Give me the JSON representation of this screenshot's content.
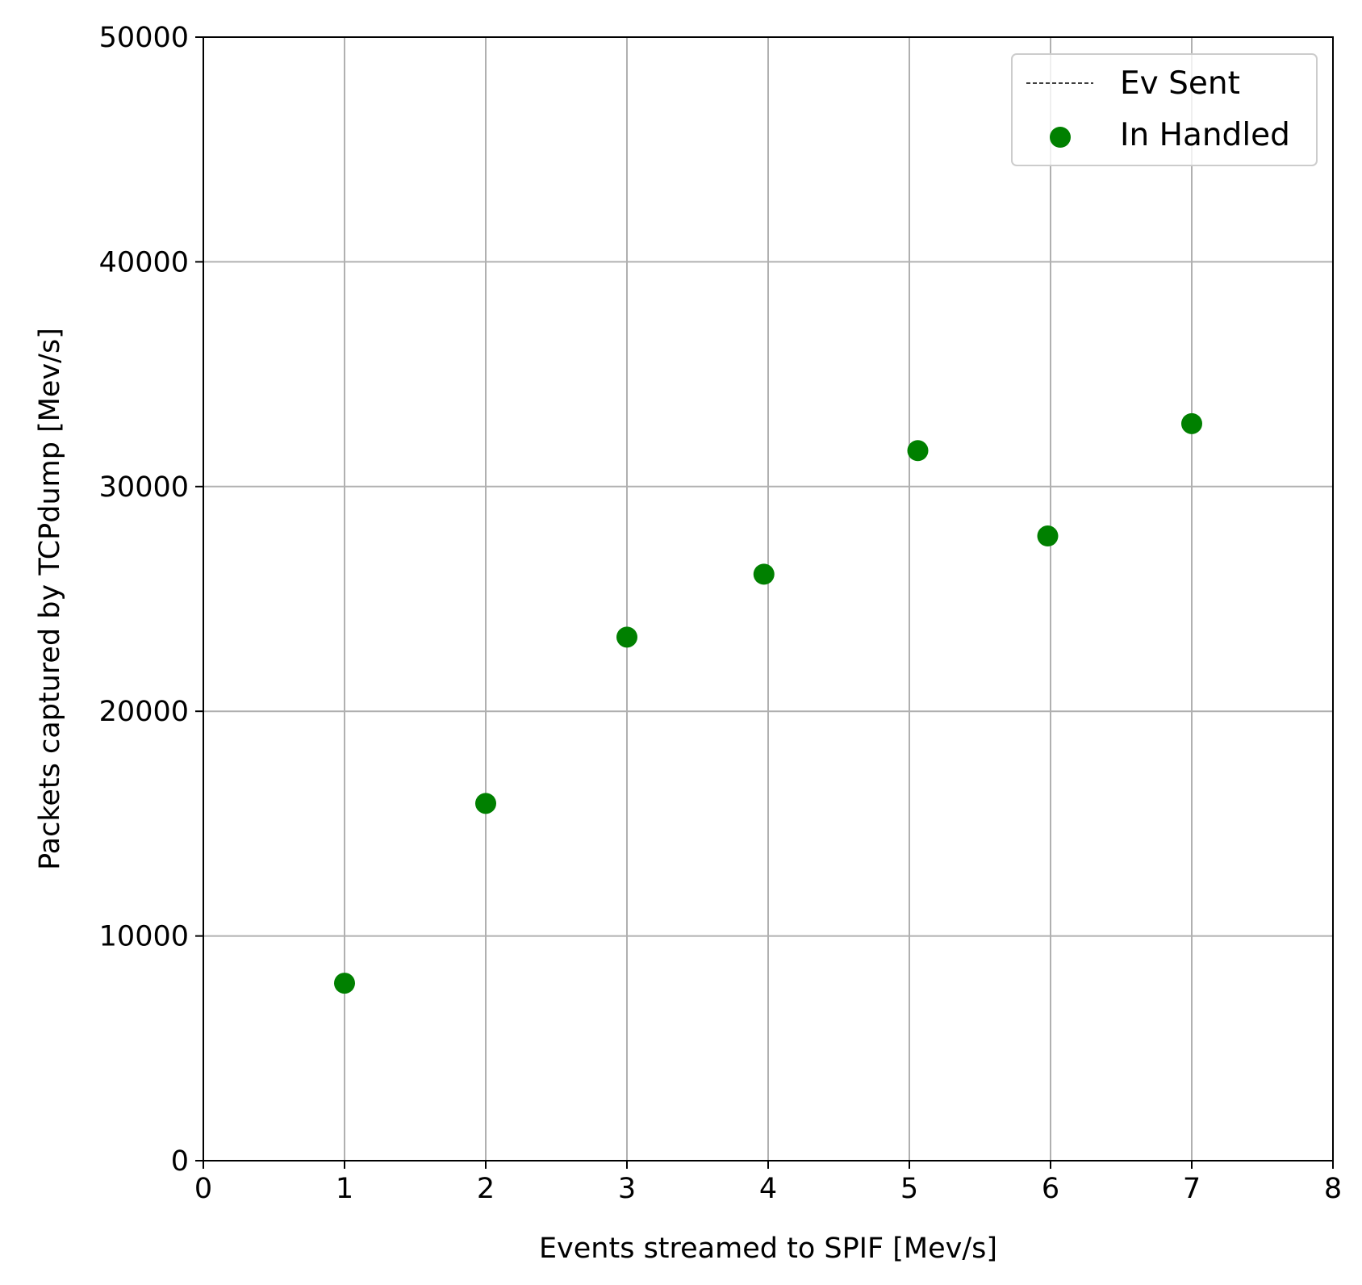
{
  "chart_data": {
    "type": "scatter",
    "xlabel": "Events streamed to SPIF [Mev/s]",
    "ylabel": "Packets captured by TCPdump [Mev/s]",
    "xlim": [
      0,
      8
    ],
    "ylim": [
      0,
      50000
    ],
    "x_ticks": [
      "0",
      "1",
      "2",
      "3",
      "4",
      "5",
      "6",
      "7",
      "8"
    ],
    "y_ticks": [
      "0",
      "10000",
      "20000",
      "30000",
      "40000",
      "50000"
    ],
    "grid": true,
    "legend_position": "top-right",
    "legend": [
      {
        "label": "Ev Sent",
        "marker": "dashed-line",
        "color": "#000000"
      },
      {
        "label": "In Handled",
        "marker": "circle",
        "color": "#008000"
      }
    ],
    "series": [
      {
        "name": "Ev Sent",
        "type": "line",
        "style": "dashed",
        "color": "#000000",
        "x": [],
        "y": []
      },
      {
        "name": "In Handled",
        "type": "scatter",
        "color": "#008000",
        "x": [
          1.0,
          2.0,
          3.0,
          3.97,
          5.06,
          5.98,
          7.0
        ],
        "y": [
          7900,
          15900,
          23300,
          26100,
          31600,
          27800,
          32800
        ]
      }
    ]
  }
}
